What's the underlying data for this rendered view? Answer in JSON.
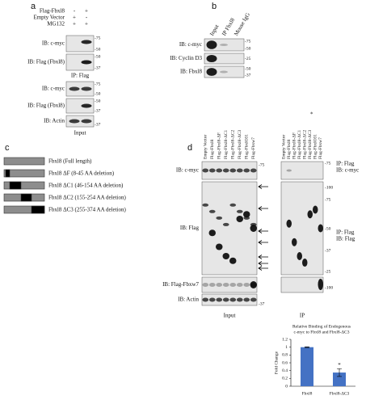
{
  "panel_a": {
    "label": "a",
    "conditions": [
      {
        "name": "Flag-Fbxl8",
        "signs": [
          "-",
          "+"
        ]
      },
      {
        "name": "Empty Vector",
        "signs": [
          "+",
          "-"
        ]
      },
      {
        "name": "MG132",
        "signs": [
          "+",
          "+"
        ]
      }
    ],
    "ip_blots": [
      {
        "label": "IB: c-myc",
        "markers": [
          "-75",
          "-50"
        ]
      },
      {
        "label": "IB: Flag (Fbxl8)",
        "markers": [
          "-50",
          "-37"
        ]
      }
    ],
    "ip_caption": "IP: Flag",
    "input_blots": [
      {
        "label": "IB: c-myc",
        "markers": [
          "-75",
          "-50"
        ]
      },
      {
        "label": "IB: Flag (Fbxl8)",
        "markers": [
          "-50",
          "-37"
        ]
      },
      {
        "label": "IB: Actin",
        "markers": [
          "-37"
        ]
      }
    ],
    "input_caption": "Input"
  },
  "panel_b": {
    "label": "b",
    "lanes": [
      "Input",
      "IP Fbxl8",
      "Mouse IgG"
    ],
    "blots": [
      {
        "label": "IB: c-myc",
        "markers": [
          "-75",
          "-50"
        ]
      },
      {
        "label": "IB: Cyclin D3",
        "markers": [
          "-25"
        ]
      },
      {
        "label": "IB: Fbxl8",
        "markers": [
          "-50",
          "-37"
        ]
      }
    ]
  },
  "panel_c": {
    "label": "c",
    "constructs": [
      "Fbxl8 (Full length)",
      "Fbxl8 ΔF (8-45 AA deletion)",
      "Fbxl8 ΔC1 (46-154 AA deletion)",
      "Fbxl8 ΔC2 (155-254 AA deletion)",
      "Fbxl8 ΔC3 (255-374 AA deletion)"
    ]
  },
  "panel_d": {
    "label": "d",
    "lanes": [
      "Empty Vector",
      "Flag-Fbxl8",
      "Flag-Fbxl8-ΔF",
      "Flag-Fbxl8-ΔC1",
      "Flag-Fbxl8-ΔC2",
      "Flag-Fbxl8-ΔC3",
      "Flag-FbxlO31",
      "Flag-Fbxw7"
    ],
    "input_blots": [
      "IB: c-myc",
      "IB: Flag",
      "IB: Flag-Fbxw7",
      "IB: Actin"
    ],
    "input_markers": [
      "-75",
      "-37"
    ],
    "ip_markers": [
      "-75",
      "-100",
      "-75",
      "-50",
      "-37",
      "-25",
      "-100"
    ],
    "ip_labels": [
      [
        "IP: Flag",
        "IB: c-myc"
      ],
      [
        "IP: Flag",
        "IB: Flag"
      ]
    ],
    "asterisk": "*",
    "input_caption": "Input",
    "ip_caption": "IP"
  },
  "chart_data": {
    "type": "bar",
    "title": [
      "Relative Binding of Endogenous",
      "c-myc to Fbxl8 and Fbxl8-ΔC3"
    ],
    "y_label": "Fold Change",
    "categories": [
      "Fbxl8",
      "Fbxl8-ΔC3"
    ],
    "values": [
      1,
      0.35
    ],
    "errors": [
      0.01,
      0.1
    ],
    "annotations": [
      null,
      "*"
    ],
    "color": "#4472c4",
    "ylim": [
      0,
      1.2
    ],
    "yticks": [
      0,
      0.2,
      0.4,
      0.6,
      0.8,
      1,
      1.2
    ]
  }
}
